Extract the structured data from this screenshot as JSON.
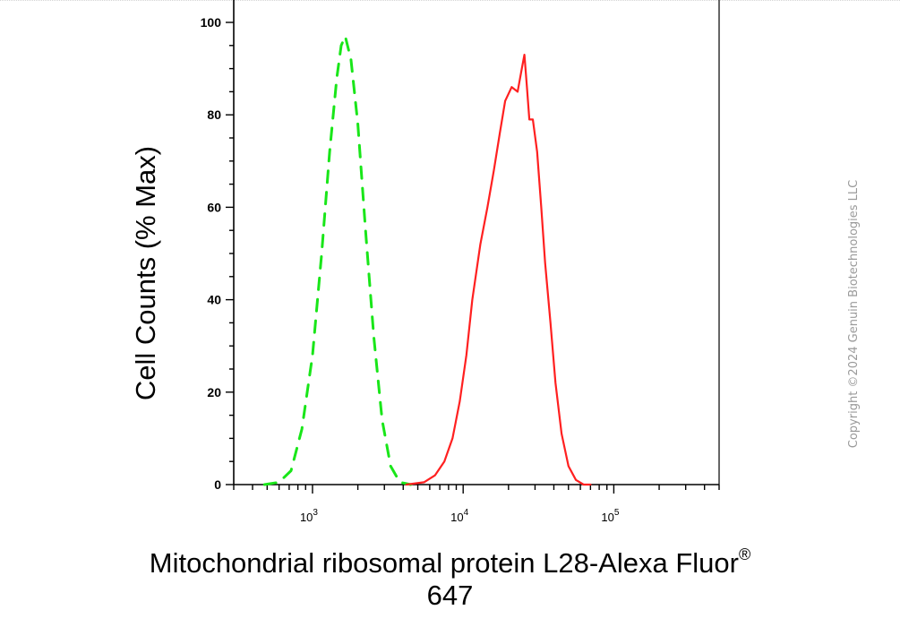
{
  "chart_data": {
    "type": "area",
    "title": "",
    "ylabel": "Cell Counts (% Max)",
    "xlabel_main": "Mitochondrial ribosomal protein L28-Alexa Fluor",
    "xlabel_sup": "®",
    "xlabel_line2": "647",
    "x_scale": "log",
    "xlim": [
      300,
      500000
    ],
    "ylim": [
      0,
      100
    ],
    "yticks": [
      0,
      20,
      40,
      60,
      80,
      100
    ],
    "xticks": [
      1000,
      10000,
      100000
    ],
    "xtick_labels": [
      {
        "base": "10",
        "exp": "3"
      },
      {
        "base": "10",
        "exp": "4"
      },
      {
        "base": "10",
        "exp": "5"
      }
    ],
    "grid": false,
    "legend": "none",
    "series": [
      {
        "color": "#19e619",
        "style": "dashed",
        "x": [
          480,
          600,
          720,
          850,
          1000,
          1150,
          1300,
          1450,
          1550,
          1650,
          1800,
          2000,
          2250,
          2550,
          2900,
          3300,
          3800,
          4500
        ],
        "y": [
          0,
          0.5,
          3,
          12,
          28,
          50,
          72,
          88,
          95,
          97,
          92,
          78,
          55,
          32,
          14,
          4,
          0.5,
          0
        ]
      },
      {
        "color": "#ff2020",
        "style": "solid",
        "x": [
          4200,
          5500,
          6500,
          7500,
          8500,
          9500,
          10500,
          11500,
          13000,
          14500,
          16000,
          17500,
          19000,
          21000,
          23000,
          24500,
          25500,
          26500,
          27500,
          29000,
          31000,
          33000,
          35000,
          38000,
          41000,
          45000,
          50000,
          56000,
          63000,
          70000
        ],
        "y": [
          0,
          0.5,
          2,
          5,
          10,
          18,
          28,
          40,
          52,
          60,
          68,
          76,
          83,
          86,
          85,
          90,
          93,
          86,
          79,
          79,
          72,
          60,
          48,
          35,
          22,
          11,
          4,
          1,
          0,
          0
        ]
      }
    ]
  },
  "watermark": "Copyright ©2024 Genuin Biotechnologies LLC"
}
